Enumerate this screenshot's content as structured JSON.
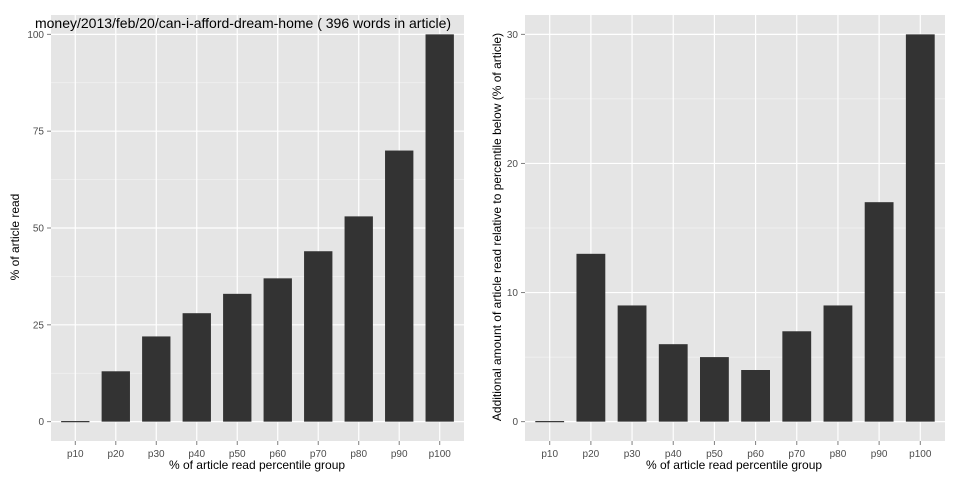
{
  "colors": {
    "panel_background": "#e5e5e5",
    "grid_major": "#ffffff",
    "grid_minor": "#f2f2f2",
    "bar_fill": "#333333",
    "tick_text": "#4d4d4d",
    "text": "#000000"
  },
  "chart_data": [
    {
      "type": "bar",
      "title": "money/2013/feb/20/can-i-afford-dream-home ( 396 words in article)",
      "xlabel": "% of article read percentile group",
      "ylabel": "% of article read",
      "categories": [
        "p10",
        "p20",
        "p30",
        "p40",
        "p50",
        "p60",
        "p70",
        "p80",
        "p90",
        "p100"
      ],
      "values": [
        0,
        13,
        22,
        28,
        33,
        37,
        44,
        53,
        70,
        100
      ],
      "ylim": [
        -5,
        105
      ],
      "yticks": [
        0,
        25,
        50,
        75,
        100
      ],
      "ytick_labels": [
        "0",
        "25",
        "50",
        "75",
        "100"
      ],
      "grid": true
    },
    {
      "type": "bar",
      "title": "",
      "xlabel": "% of article read percentile group",
      "ylabel": "Additional amount of article read relative to percentile below (% of article)",
      "categories": [
        "p10",
        "p20",
        "p30",
        "p40",
        "p50",
        "p60",
        "p70",
        "p80",
        "p90",
        "p100"
      ],
      "values": [
        0,
        13,
        9,
        6,
        5,
        4,
        7,
        9,
        17,
        30
      ],
      "ylim": [
        -1.5,
        31.5
      ],
      "yticks": [
        0,
        10,
        20,
        30
      ],
      "ytick_labels": [
        "0",
        "10",
        "20",
        "30"
      ],
      "grid": true
    }
  ]
}
